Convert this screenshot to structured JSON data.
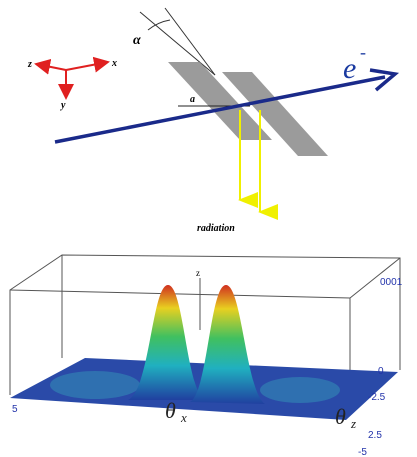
{
  "diagram": {
    "axis_z": "z",
    "axis_x": "x",
    "axis_y": "y",
    "angle": "α",
    "distance": "a",
    "beam": "e",
    "beam_charge": "-",
    "radiation": "radiation"
  },
  "plot": {
    "z_axis": "z",
    "z_tick_top": "0001",
    "z_tick_zero": "0",
    "x_tick_left": "5",
    "theta": "θ",
    "theta_x_sub": "x",
    "theta_z_sub": "z",
    "z_ticks": [
      "-2.5",
      "2.5",
      "-5"
    ]
  }
}
